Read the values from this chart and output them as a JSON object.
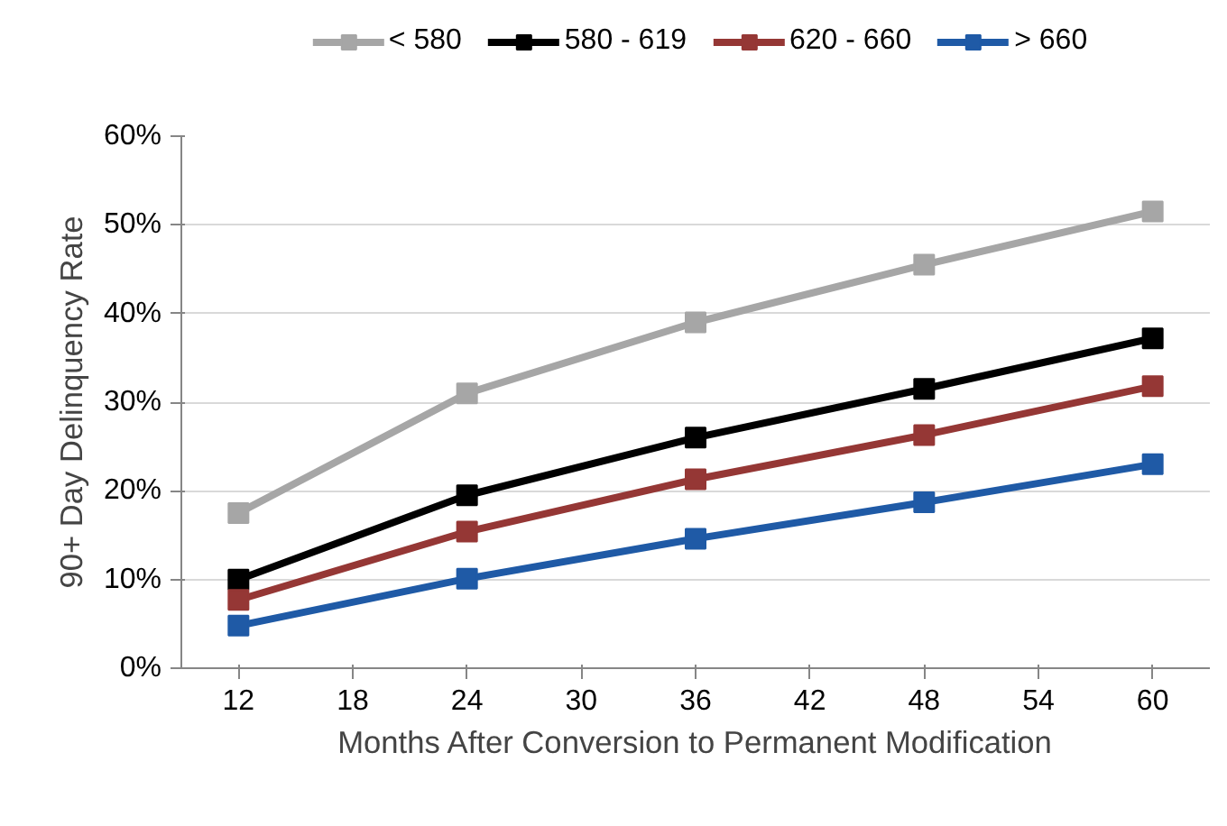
{
  "chart_data": {
    "type": "line",
    "xlabel": "Months After Conversion to Permanent Modification",
    "ylabel": "90+ Day Delinquency Rate",
    "xlim": [
      9,
      63
    ],
    "xticks": [
      12,
      18,
      24,
      30,
      36,
      42,
      48,
      54,
      60
    ],
    "ylim": [
      0,
      60
    ],
    "yticks": [
      {
        "value": 0,
        "label": "0%"
      },
      {
        "value": 10,
        "label": "10%"
      },
      {
        "value": 20,
        "label": "20%"
      },
      {
        "value": 30,
        "label": "30%"
      },
      {
        "value": 40,
        "label": "40%"
      },
      {
        "value": 50,
        "label": "50%"
      },
      {
        "value": 60,
        "label": "60%"
      }
    ],
    "grid": "y",
    "legend": "top",
    "marker": "square",
    "line_style": "solid",
    "series": [
      {
        "name": "< 580",
        "color": "#a6a6a6",
        "x": [
          12,
          24,
          36,
          48,
          60
        ],
        "values": [
          17.5,
          31,
          39,
          45.5,
          51.5
        ]
      },
      {
        "name": "580 - 619",
        "color": "#000000",
        "x": [
          12,
          24,
          36,
          48,
          60
        ],
        "values": [
          10,
          19.5,
          26,
          31.5,
          37.2
        ]
      },
      {
        "name": "620 - 660",
        "color": "#953735",
        "x": [
          12,
          24,
          36,
          48,
          60
        ],
        "values": [
          7.7,
          15.4,
          21.3,
          26.3,
          31.8
        ]
      },
      {
        "name": "> 660",
        "color": "#1f5aa6",
        "x": [
          12,
          24,
          36,
          48,
          60
        ],
        "values": [
          4.8,
          10.1,
          14.6,
          18.7,
          23
        ]
      }
    ]
  }
}
